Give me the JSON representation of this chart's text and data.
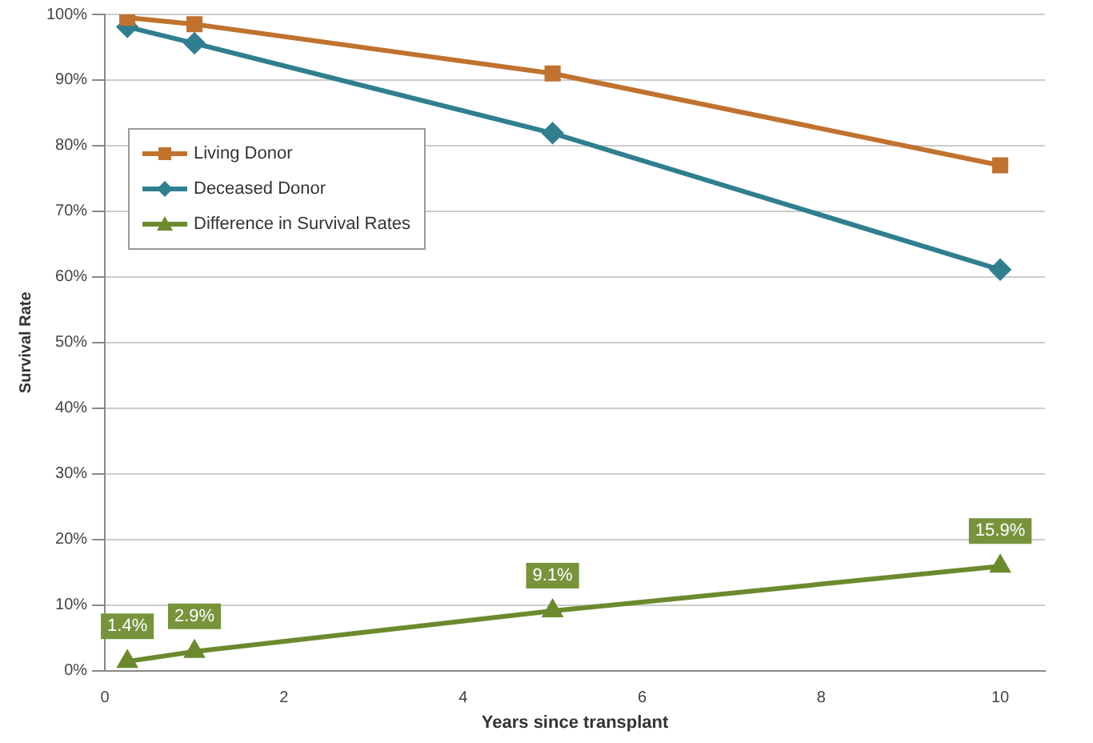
{
  "chart_data": {
    "type": "line",
    "xlabel": "Years since transplant",
    "ylabel": "Survival Rate",
    "xlim": [
      0,
      10.5
    ],
    "xticks": [
      0,
      2,
      4,
      6,
      8,
      10
    ],
    "ylim": [
      0,
      100
    ],
    "yticks": [
      {
        "value": 0,
        "label": "0%"
      },
      {
        "value": 10,
        "label": "10%"
      },
      {
        "value": 20,
        "label": "20%"
      },
      {
        "value": 30,
        "label": "30%"
      },
      {
        "value": 40,
        "label": "40%"
      },
      {
        "value": 50,
        "label": "50%"
      },
      {
        "value": 60,
        "label": "60%"
      },
      {
        "value": 70,
        "label": "70%"
      },
      {
        "value": 80,
        "label": "80%"
      },
      {
        "value": 90,
        "label": "90%"
      },
      {
        "value": 100,
        "label": "100%"
      }
    ],
    "grid": "y",
    "legend": "top left",
    "series": [
      {
        "name": "Living Donor",
        "color": "#c0722e",
        "marker": "square",
        "x": [
          0.25,
          1,
          5,
          10
        ],
        "values": [
          99.5,
          98.5,
          91,
          77
        ]
      },
      {
        "name": "Deceased Donor",
        "color": "#2f7f8f",
        "marker": "diamond",
        "x": [
          0.25,
          1,
          5,
          10
        ],
        "values": [
          98.1,
          95.6,
          81.9,
          61.1
        ]
      },
      {
        "name": "Difference in Survival Rates",
        "color": "#6b8a2e",
        "marker": "triangle",
        "x": [
          0.25,
          1,
          5,
          10
        ],
        "values": [
          1.4,
          2.9,
          9.1,
          15.9
        ],
        "value_labels": [
          "1.4%",
          "2.9%",
          "9.1%",
          "15.9%"
        ]
      }
    ]
  }
}
